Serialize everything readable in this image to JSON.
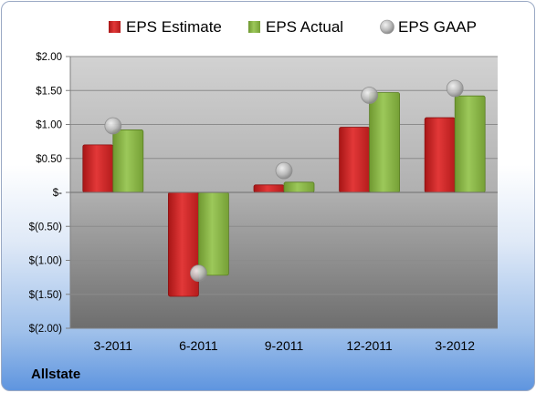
{
  "company": "Allstate",
  "colors": {
    "estimate": "#d42a2a",
    "actual": "#8db94a",
    "gaap": "#b4b4b4"
  },
  "chart_data": {
    "type": "bar",
    "categories": [
      "3-2011",
      "6-2011",
      "9-2011",
      "12-2011",
      "3-2012"
    ],
    "series": [
      {
        "name": "EPS Estimate",
        "kind": "bar",
        "values": [
          0.7,
          -1.53,
          0.11,
          0.96,
          1.1
        ]
      },
      {
        "name": "EPS Actual",
        "kind": "bar",
        "values": [
          0.92,
          -1.22,
          0.15,
          1.47,
          1.42
        ]
      },
      {
        "name": "EPS GAAP",
        "kind": "marker",
        "values": [
          0.98,
          -1.19,
          0.32,
          1.43,
          1.53
        ]
      }
    ],
    "ylim": [
      -2.0,
      2.0
    ],
    "yticks": [
      2.0,
      1.5,
      1.0,
      0.5,
      0.0,
      -0.5,
      -1.0,
      -1.5,
      -2.0
    ],
    "ytick_labels": [
      "$2.00",
      "$1.50",
      "$1.00",
      "$0.50",
      "$-",
      "$(0.50)",
      "$(1.00)",
      "$(1.50)",
      "$(2.00)"
    ],
    "grid": true,
    "legend_position": "top"
  }
}
